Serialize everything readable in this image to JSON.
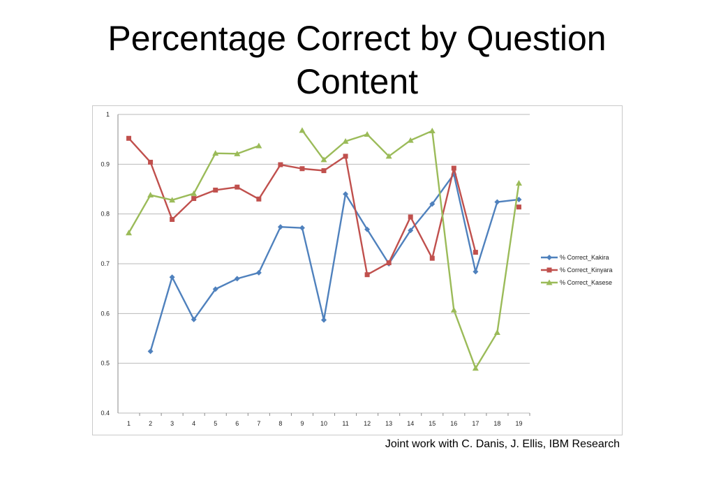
{
  "slide": {
    "title_line1": "Percentage Correct by Question",
    "title_line2": "Content",
    "credit": "Joint work with C. Danis, J. Ellis, IBM Research"
  },
  "chart_data": {
    "type": "line",
    "title": "",
    "xlabel": "",
    "ylabel": "",
    "x": [
      1,
      2,
      3,
      4,
      5,
      6,
      7,
      8,
      9,
      10,
      11,
      12,
      13,
      14,
      15,
      16,
      17,
      18,
      19
    ],
    "ylim": [
      0.4,
      1
    ],
    "yticks": [
      0.4,
      0.5,
      0.6,
      0.7,
      0.8,
      0.9,
      1
    ],
    "grid": "horizontal",
    "legend_position": "right",
    "series": [
      {
        "name": "% Correct_Kakira",
        "color": "#4f81bd",
        "marker": "diamond",
        "values": [
          null,
          0.524,
          0.673,
          0.588,
          0.649,
          0.67,
          0.682,
          0.774,
          0.772,
          0.587,
          0.84,
          0.769,
          0.7,
          0.767,
          0.82,
          0.88,
          0.684,
          0.824,
          0.829
        ]
      },
      {
        "name": "% Correct_Kinyara",
        "color": "#c0504d",
        "marker": "square",
        "values": [
          0.952,
          0.904,
          0.789,
          0.831,
          0.848,
          0.854,
          0.83,
          0.899,
          0.891,
          0.887,
          0.916,
          0.678,
          0.702,
          0.794,
          0.711,
          0.892,
          0.723,
          null,
          0.814
        ]
      },
      {
        "name": "% Correct_Kasese",
        "color": "#9bbb59",
        "marker": "triangle",
        "values": [
          0.762,
          0.838,
          0.828,
          0.841,
          0.922,
          0.921,
          0.937,
          null,
          0.968,
          0.909,
          0.946,
          0.96,
          0.916,
          0.948,
          0.967,
          0.607,
          0.49,
          0.562,
          0.862
        ]
      }
    ]
  }
}
